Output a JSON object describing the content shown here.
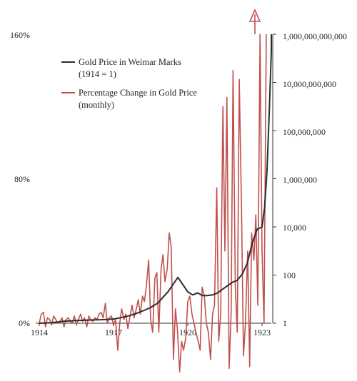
{
  "chart_data": {
    "type": "line",
    "title": "",
    "xlabel": "",
    "x_ticks": [
      "1914",
      "1917",
      "1920",
      "1923"
    ],
    "x_range": [
      1914,
      1923.5
    ],
    "left_axis": {
      "ticks": [
        "0%",
        "80%",
        "160%"
      ],
      "ylim": [
        0,
        160
      ],
      "unit": "%"
    },
    "right_axis": {
      "ticks": [
        "1",
        "100",
        "10,000",
        "1,000,000",
        "100,000,000",
        "10,000,000,000",
        "1,000,000,000,000"
      ],
      "scale": "log",
      "ylim": [
        1,
        1000000000000
      ]
    },
    "legend": {
      "placement": "top-left",
      "entries": [
        {
          "name": "Gold Price in Weimar Marks",
          "name_line2": "(1914 = 1)",
          "color": "#2b2b2b"
        },
        {
          "name": "Percentage Change in Gold Price",
          "name_line2": "(monthly)",
          "color": "#c0504d"
        }
      ]
    },
    "series": [
      {
        "name": "Gold Price in Weimar Marks (1914 = 1)",
        "axis": "right",
        "color": "#2b2b2b",
        "x": [
          1914.0,
          1914.5,
          1915.0,
          1915.5,
          1916.0,
          1916.5,
          1917.0,
          1917.3,
          1917.6,
          1917.9,
          1918.2,
          1918.5,
          1918.8,
          1919.0,
          1919.2,
          1919.4,
          1919.6,
          1919.8,
          1920.0,
          1920.2,
          1920.4,
          1920.6,
          1920.8,
          1921.0,
          1921.2,
          1921.5,
          1921.8,
          1922.0,
          1922.2,
          1922.4,
          1922.6,
          1922.8,
          1923.0,
          1923.1,
          1923.2,
          1923.3,
          1923.4,
          1923.5
        ],
        "values": [
          1,
          1.05,
          1.2,
          1.3,
          1.35,
          1.4,
          1.5,
          1.7,
          2,
          2.5,
          3.3,
          4.5,
          7,
          12,
          20,
          40,
          80,
          40,
          20,
          15,
          18,
          14,
          14,
          15,
          18,
          30,
          50,
          60,
          110,
          300,
          2000,
          8000,
          10000,
          60000,
          2000000,
          1000000000,
          200000000000,
          1000000000000
        ]
      },
      {
        "name": "Percentage Change in Gold Price (monthly)",
        "axis": "left",
        "color": "#c0504d",
        "x": [
          1914.0,
          1914.08,
          1914.17,
          1914.25,
          1914.33,
          1914.42,
          1914.5,
          1914.58,
          1914.67,
          1914.75,
          1914.83,
          1914.92,
          1915.0,
          1915.08,
          1915.17,
          1915.25,
          1915.33,
          1915.42,
          1915.5,
          1915.58,
          1915.67,
          1915.75,
          1915.83,
          1915.92,
          1916.0,
          1916.08,
          1916.17,
          1916.25,
          1916.33,
          1916.42,
          1916.5,
          1916.58,
          1916.67,
          1916.75,
          1916.83,
          1916.92,
          1917.0,
          1917.08,
          1917.17,
          1917.25,
          1917.33,
          1917.42,
          1917.5,
          1917.58,
          1917.67,
          1917.75,
          1917.83,
          1917.92,
          1918.0,
          1918.08,
          1918.17,
          1918.25,
          1918.33,
          1918.42,
          1918.5,
          1918.58,
          1918.67,
          1918.75,
          1918.83,
          1918.92,
          1919.0,
          1919.08,
          1919.17,
          1919.25,
          1919.33,
          1919.42,
          1919.5,
          1919.58,
          1919.67,
          1919.75,
          1919.83,
          1919.92,
          1920.0,
          1920.08,
          1920.17,
          1920.25,
          1920.33,
          1920.42,
          1920.5,
          1920.58,
          1920.67,
          1920.75,
          1920.83,
          1920.92,
          1921.0,
          1921.08,
          1921.17,
          1921.25,
          1921.33,
          1921.42,
          1921.5,
          1921.58,
          1921.67,
          1921.75,
          1921.83,
          1921.92,
          1922.0,
          1922.08,
          1922.17,
          1922.25,
          1922.33,
          1922.42,
          1922.5,
          1922.58,
          1922.67,
          1922.75,
          1922.83,
          1922.92,
          1923.0,
          1923.08,
          1923.17
        ],
        "values": [
          0,
          5,
          6,
          -2,
          3,
          2,
          -1,
          4,
          2,
          0,
          1,
          3,
          -2,
          2,
          3,
          1,
          0,
          4,
          -1,
          2,
          5,
          1,
          3,
          -2,
          4,
          2,
          1,
          3,
          2,
          5,
          6,
          3,
          11,
          0,
          3,
          4,
          -1,
          2,
          -15,
          0,
          8,
          2,
          5,
          -3,
          4,
          10,
          3,
          8,
          13,
          5,
          15,
          12,
          21,
          35,
          2,
          -5,
          25,
          28,
          -5,
          30,
          38,
          23,
          30,
          50,
          42,
          -20,
          8,
          -3,
          -27,
          -10,
          -15,
          -8,
          12,
          15,
          5,
          0,
          -5,
          -10,
          -15,
          20,
          15,
          0,
          -5,
          -20,
          5,
          10,
          75,
          -10,
          5,
          120,
          40,
          125,
          -25,
          5,
          140,
          20,
          -5,
          135,
          65,
          -18,
          0,
          40,
          -24,
          50,
          35,
          60,
          10,
          170,
          40,
          0,
          165
        ]
      }
    ]
  }
}
